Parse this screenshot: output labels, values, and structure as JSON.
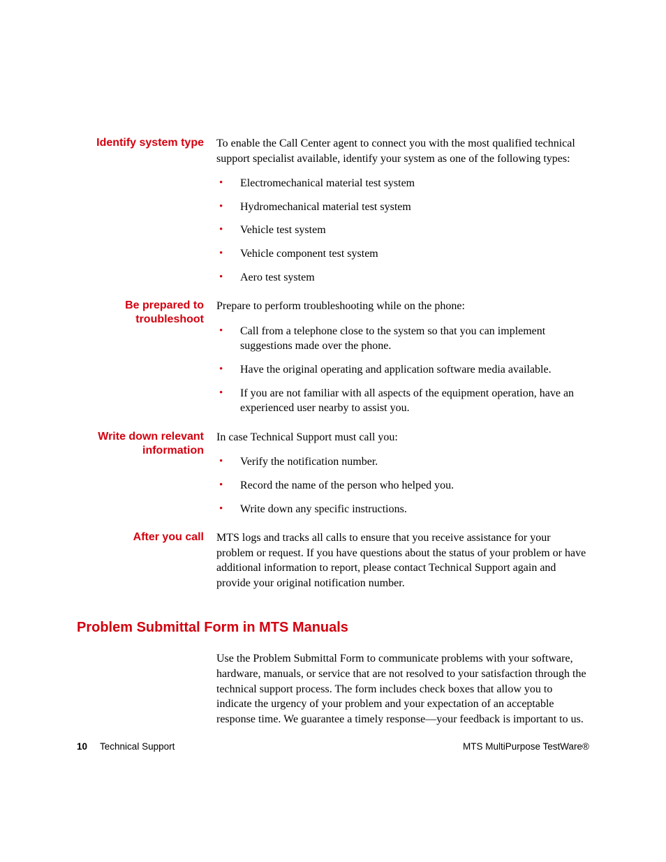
{
  "colors": {
    "accent": "#d3000f",
    "text": "#000000",
    "background": "#ffffff"
  },
  "typography": {
    "body_family": "Times New Roman",
    "body_size_pt": 12,
    "label_family": "Arial",
    "label_size_pt": 12,
    "heading_size_pt": 15
  },
  "sections": [
    {
      "label": "Identify system type",
      "intro": "To enable the Call Center agent to connect you with the most qualified technical support specialist available, identify your system as one of the following types:",
      "bullets": [
        "Electromechanical material test system",
        "Hydromechanical material test system",
        "Vehicle test system",
        "Vehicle component test system",
        "Aero test system"
      ]
    },
    {
      "label": "Be prepared to troubleshoot",
      "intro": "Prepare to perform troubleshooting while on the phone:",
      "bullets": [
        "Call from a telephone close to the system so that you can implement suggestions made over the phone.",
        "Have the original operating and application software media available.",
        "If you are not familiar with all aspects of the equipment operation, have an experienced user nearby to assist you."
      ]
    },
    {
      "label": "Write down relevant information",
      "intro": "In case Technical Support must call you:",
      "bullets": [
        "Verify the notification number.",
        "Record the name of the person who helped you.",
        "Write down any specific instructions."
      ]
    },
    {
      "label": "After you call",
      "intro": "MTS logs and tracks all calls to ensure that you receive assistance for your problem or request. If you have questions about the status of your problem or have additional information to report, please contact Technical Support again and provide your original notification number.",
      "bullets": []
    }
  ],
  "mainHeading": "Problem Submittal Form in MTS Manuals",
  "mainBody": "Use the Problem Submittal Form to communicate problems with your software, hardware, manuals, or service that are not resolved to your satisfaction through the technical support process. The form includes check boxes that allow you to indicate the urgency of your problem and your expectation of an acceptable response time. We guarantee a timely response—your feedback is important to us.",
  "footer": {
    "pageNumber": "10",
    "sectionTitle": "Technical Support",
    "productName": "MTS MultiPurpose TestWare®"
  }
}
